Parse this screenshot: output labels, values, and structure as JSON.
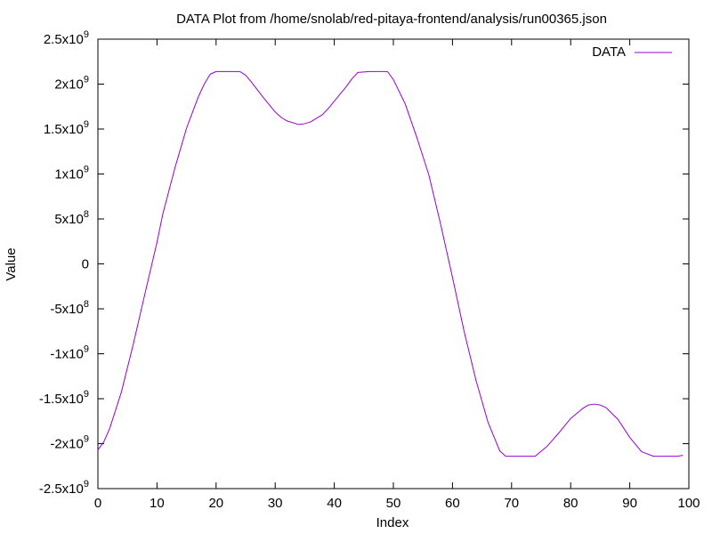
{
  "chart_data": {
    "type": "line",
    "title": "DATA Plot from /home/snolab/red-pitaya-frontend/analysis/run00365.json",
    "xlabel": "Index",
    "ylabel": "Value",
    "xlim": [
      0,
      100
    ],
    "ylim": [
      -2500000000,
      2500000000
    ],
    "grid": false,
    "legend_position": "top-right",
    "x_ticks": [
      {
        "value": 0,
        "label": "0"
      },
      {
        "value": 10,
        "label": "10"
      },
      {
        "value": 20,
        "label": "20"
      },
      {
        "value": 30,
        "label": "30"
      },
      {
        "value": 40,
        "label": "40"
      },
      {
        "value": 50,
        "label": "50"
      },
      {
        "value": 60,
        "label": "60"
      },
      {
        "value": 70,
        "label": "70"
      },
      {
        "value": 80,
        "label": "80"
      },
      {
        "value": 90,
        "label": "90"
      },
      {
        "value": 100,
        "label": "100"
      }
    ],
    "y_ticks": [
      {
        "value": 2500000000,
        "mant": "2.5x10",
        "exp": "9"
      },
      {
        "value": 2000000000,
        "mant": "2x10",
        "exp": "9"
      },
      {
        "value": 1500000000,
        "mant": "1.5x10",
        "exp": "9"
      },
      {
        "value": 1000000000,
        "mant": "1x10",
        "exp": "9"
      },
      {
        "value": 500000000,
        "mant": "5x10",
        "exp": "8"
      },
      {
        "value": 0,
        "mant": "0",
        "exp": ""
      },
      {
        "value": -500000000,
        "mant": "-5x10",
        "exp": "8"
      },
      {
        "value": -1000000000,
        "mant": "-1x10",
        "exp": "9"
      },
      {
        "value": -1500000000,
        "mant": "-1.5x10",
        "exp": "9"
      },
      {
        "value": -2000000000,
        "mant": "-2x10",
        "exp": "9"
      },
      {
        "value": -2500000000,
        "mant": "-2.5x10",
        "exp": "9"
      }
    ],
    "series": [
      {
        "name": "DATA",
        "color": "#9400d3",
        "x": [
          0,
          1,
          2,
          4,
          6,
          8,
          10,
          11,
          13,
          15,
          17,
          18,
          19,
          20,
          22,
          24,
          25,
          26,
          28,
          30,
          31,
          32,
          34,
          35,
          36,
          38,
          39,
          40,
          42,
          43,
          44,
          46,
          48,
          49,
          50,
          52,
          54,
          56,
          58,
          60,
          62,
          64,
          66,
          68,
          69,
          70,
          72,
          74,
          76,
          78,
          80,
          82,
          83,
          84,
          85,
          86,
          88,
          90,
          92,
          94,
          95,
          96,
          98,
          99
        ],
        "y": [
          -2070000000,
          -1980000000,
          -1830000000,
          -1420000000,
          -890000000,
          -320000000,
          240000000,
          560000000,
          1060000000,
          1510000000,
          1860000000,
          2000000000,
          2110000000,
          2140000000,
          2140000000,
          2140000000,
          2100000000,
          2020000000,
          1850000000,
          1690000000,
          1630000000,
          1590000000,
          1550000000,
          1560000000,
          1580000000,
          1660000000,
          1730000000,
          1810000000,
          1970000000,
          2060000000,
          2130000000,
          2140000000,
          2140000000,
          2140000000,
          2050000000,
          1780000000,
          1400000000,
          990000000,
          440000000,
          -150000000,
          -760000000,
          -1300000000,
          -1760000000,
          -2080000000,
          -2140000000,
          -2140000000,
          -2140000000,
          -2140000000,
          -2030000000,
          -1880000000,
          -1720000000,
          -1610000000,
          -1570000000,
          -1560000000,
          -1570000000,
          -1600000000,
          -1730000000,
          -1930000000,
          -2090000000,
          -2140000000,
          -2140000000,
          -2140000000,
          -2140000000,
          -2130000000
        ]
      }
    ]
  }
}
